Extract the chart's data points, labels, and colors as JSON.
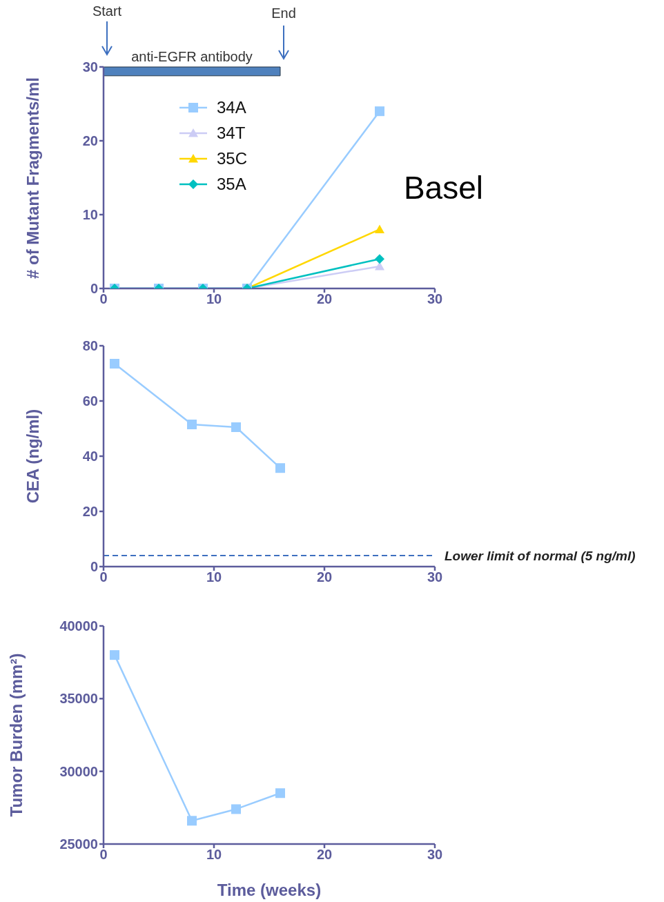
{
  "chart_data": [
    {
      "type": "line",
      "ylabel": "# of Mutant Fragments/ml",
      "x": [
        1,
        5,
        9,
        13,
        25
      ],
      "xlim": [
        0,
        30
      ],
      "xticks": [
        0,
        10,
        20,
        30
      ],
      "ylim": [
        0,
        30
      ],
      "yticks": [
        0,
        10,
        20,
        30
      ],
      "legend": "top left",
      "series": [
        {
          "name": "34A",
          "color": "#99ccff",
          "marker": "square",
          "values": [
            0,
            0,
            0,
            0,
            24
          ]
        },
        {
          "name": "34T",
          "color": "#ccccf5",
          "marker": "triangle",
          "values": [
            0,
            0,
            0,
            0,
            3
          ]
        },
        {
          "name": "35C",
          "color": "#ffd700",
          "marker": "triangle",
          "values": [
            null,
            null,
            null,
            0,
            8
          ]
        },
        {
          "name": "35A",
          "color": "#00c0c0",
          "marker": "diamond",
          "values": [
            0,
            0,
            0,
            0,
            4
          ]
        }
      ],
      "bands": [
        {
          "axis": "x",
          "from": 0,
          "to": 16,
          "label": "anti-EGFR antibody",
          "color": "#4f81bd"
        }
      ],
      "annotations": [
        "Start",
        "End",
        "Basel"
      ]
    },
    {
      "type": "line",
      "ylabel": "CEA (ng/ml)",
      "x": [
        1,
        8,
        12,
        16
      ],
      "xlim": [
        0,
        30
      ],
      "xticks": [
        0,
        10,
        20,
        30
      ],
      "ylim": [
        0,
        80
      ],
      "yticks": [
        0,
        20,
        40,
        60,
        80
      ],
      "marker": "square",
      "series": [
        {
          "color": "#99ccff",
          "values": [
            73.5,
            51.5,
            50.5,
            35.7
          ]
        }
      ],
      "ref_lines": [
        {
          "axis": "y",
          "value": 4,
          "label": "Lower limit of normal (5 ng/ml)",
          "color": "#3d6fbf",
          "line_style": "dashed"
        }
      ]
    },
    {
      "type": "line",
      "ylabel": "Tumor Burden (mm²)",
      "xlabel": "Time (weeks)",
      "x": [
        1,
        8,
        12,
        16
      ],
      "xlim": [
        0,
        30
      ],
      "xticks": [
        0,
        10,
        20,
        30
      ],
      "ylim": [
        25000,
        40000
      ],
      "yticks": [
        25000,
        30000,
        35000,
        40000
      ],
      "marker": "square",
      "series": [
        {
          "color": "#99ccff",
          "values": [
            38000,
            26600,
            27400,
            28500
          ]
        }
      ]
    }
  ]
}
